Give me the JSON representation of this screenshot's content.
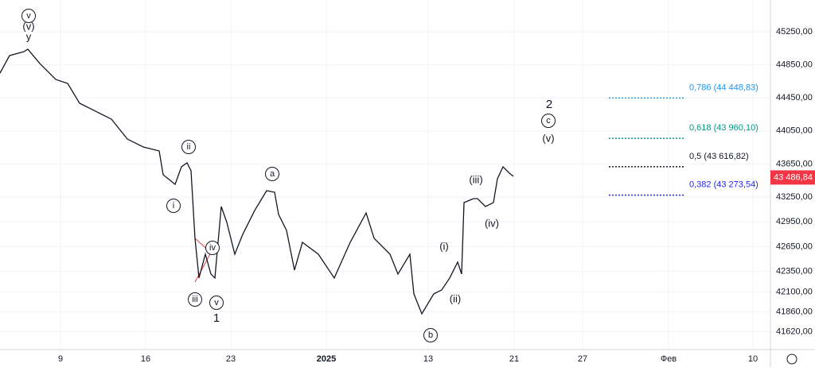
{
  "chart_data": {
    "type": "line",
    "color": "#131722",
    "x": [
      0,
      1.2,
      3,
      3.5,
      5,
      7,
      8.5,
      10,
      12,
      14,
      16,
      18,
      20,
      20.5,
      22,
      22.8,
      23.5,
      24,
      24.5,
      25,
      25.8,
      26.5,
      27,
      27.8,
      28.5,
      29.5,
      30.5,
      32,
      33.5,
      34.5,
      35,
      36,
      37,
      38,
      40,
      42,
      44,
      46,
      47,
      49,
      50,
      51.5,
      52,
      53,
      54.5,
      55.5,
      56.5,
      57.5,
      58,
      58.3,
      59.5,
      60,
      61,
      62,
      62.5,
      63.2,
      64,
      64.5
    ],
    "values": [
      44750,
      44962,
      45010,
      45039,
      44866,
      44674,
      44625,
      44385,
      44289,
      44193,
      43952,
      43856,
      43808,
      43520,
      43404,
      43616,
      43664,
      43568,
      42751,
      42270,
      42558,
      42318,
      42270,
      43135,
      42943,
      42558,
      42799,
      43087,
      43327,
      43308,
      43039,
      42847,
      42366,
      42702,
      42558,
      42270,
      42702,
      43058,
      42751,
      42558,
      42318,
      42558,
      42078,
      41837,
      42078,
      42126,
      42270,
      42462,
      42318,
      43183,
      43231,
      43231,
      43135,
      43183,
      43472,
      43616,
      43539,
      43501
    ],
    "xlim": [
      0,
      96.8
    ],
    "ylim": [
      41404,
      45635
    ],
    "xticks": [
      {
        "value": 7.6,
        "label": "9"
      },
      {
        "value": 18.3,
        "label": "16"
      },
      {
        "value": 29,
        "label": "23"
      },
      {
        "value": 41,
        "label": "2025"
      },
      {
        "value": 53.8,
        "label": "13"
      },
      {
        "value": 64.6,
        "label": "21"
      },
      {
        "value": 73.2,
        "label": "27"
      },
      {
        "value": 84,
        "label": "Фев"
      },
      {
        "value": 94.6,
        "label": "10"
      }
    ],
    "yticks": [
      {
        "value": 45250,
        "label": "45250,00"
      },
      {
        "value": 44850,
        "label": "44850,00"
      },
      {
        "value": 44450,
        "label": "44450,00"
      },
      {
        "value": 44050,
        "label": "44050,00"
      },
      {
        "value": 43650,
        "label": "43650,00"
      },
      {
        "value": 43250,
        "label": "43250,00"
      },
      {
        "value": 42950,
        "label": "42950,00"
      },
      {
        "value": 42650,
        "label": "42650,00"
      },
      {
        "value": 42350,
        "label": "42350,00"
      },
      {
        "value": 42100,
        "label": "42100,00"
      },
      {
        "value": 41860,
        "label": "41860,00"
      },
      {
        "value": 41620,
        "label": "41620,00"
      }
    ],
    "last_price": {
      "value": 43486.84,
      "label": "43 486,84"
    },
    "fib_levels": [
      {
        "level": 0.786,
        "price": 44448.83,
        "label": "0,786 (44 448,83)",
        "color": "#2196f3"
      },
      {
        "level": 0.618,
        "price": 43960.1,
        "label": "0,618 (43 960,10)",
        "color": "#089981"
      },
      {
        "level": 0.5,
        "price": 43616.82,
        "label": "0,5 (43 616,82)",
        "color": "#131722"
      },
      {
        "level": 0.382,
        "price": 43273.54,
        "label": "0,382 (43 273,54)",
        "color": "#2424f0"
      }
    ],
    "annotations": [
      "v",
      "(v)",
      "y",
      "ii",
      "i",
      "iii",
      "iv",
      "v",
      "1",
      "a",
      "b",
      "(i)",
      "(ii)",
      "(iii)",
      "(iv)",
      "2",
      "c",
      "(v)"
    ],
    "grid": true
  }
}
